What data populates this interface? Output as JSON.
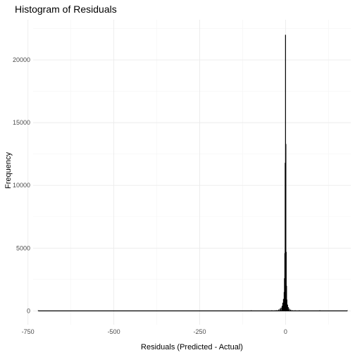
{
  "chart_data": {
    "type": "bar",
    "title": "Histogram of Residuals",
    "xlabel": "Residuals (Predicted - Actual)",
    "ylabel": "Frequency",
    "xlim": [
      -735,
      190
    ],
    "ylim": [
      -1100,
      23200
    ],
    "x_ticks": [
      -750,
      -500,
      -250,
      0
    ],
    "x_tick_labels": [
      "-750",
      "-500",
      "-250",
      "0"
    ],
    "y_ticks": [
      0,
      5000,
      10000,
      15000,
      20000
    ],
    "y_tick_labels": [
      "0",
      "5000",
      "10000",
      "15000",
      "20000"
    ],
    "grid": true,
    "legend": "none",
    "bar_color": "#000000",
    "bins": [
      {
        "x": -720,
        "count": 0
      },
      {
        "x": -100,
        "count": 0
      },
      {
        "x": -40,
        "count": 5
      },
      {
        "x": -30,
        "count": 30
      },
      {
        "x": -25,
        "count": 60
      },
      {
        "x": -20,
        "count": 110
      },
      {
        "x": -16,
        "count": 180
      },
      {
        "x": -13,
        "count": 260
      },
      {
        "x": -10,
        "count": 400
      },
      {
        "x": -8,
        "count": 650
      },
      {
        "x": -6,
        "count": 950
      },
      {
        "x": -4,
        "count": 1500
      },
      {
        "x": -3,
        "count": 2600
      },
      {
        "x": -2,
        "count": 4600
      },
      {
        "x": -1,
        "count": 11800
      },
      {
        "x": 0,
        "count": 22000
      },
      {
        "x": 1,
        "count": 13300
      },
      {
        "x": 2,
        "count": 4700
      },
      {
        "x": 3,
        "count": 2000
      },
      {
        "x": 4,
        "count": 900
      },
      {
        "x": 6,
        "count": 500
      },
      {
        "x": 8,
        "count": 300
      },
      {
        "x": 11,
        "count": 180
      },
      {
        "x": 15,
        "count": 100
      },
      {
        "x": 20,
        "count": 50
      },
      {
        "x": 28,
        "count": 20
      },
      {
        "x": 40,
        "count": 5
      },
      {
        "x": 100,
        "count": 0
      },
      {
        "x": 180,
        "count": 0
      }
    ]
  }
}
